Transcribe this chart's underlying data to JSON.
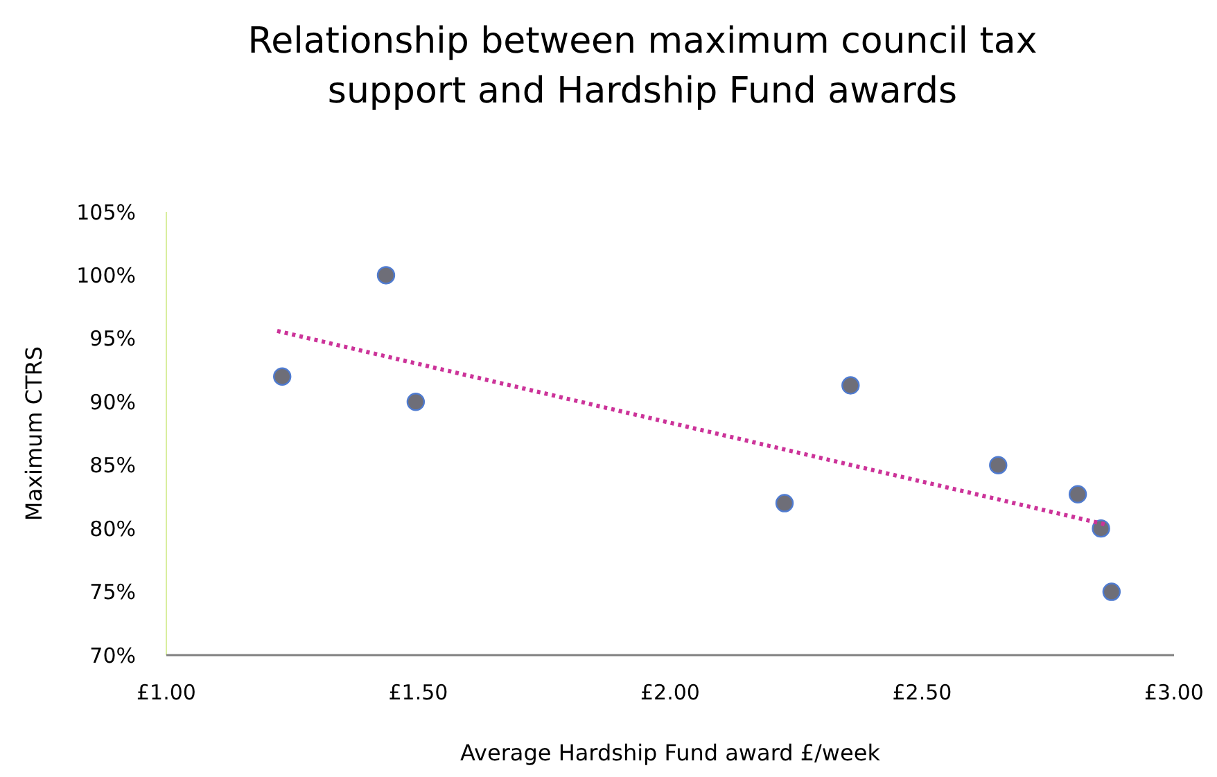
{
  "chart_data": {
    "type": "scatter",
    "title": "Relationship between maximum council tax support and Hardship Fund awards",
    "xlabel": "Average Hardship Fund award £/week",
    "ylabel": "Maximum CTRS",
    "xlim": [
      1,
      3
    ],
    "xticks": [
      {
        "value": 1,
        "label": "£1.00"
      },
      {
        "value": 1.5,
        "label": "£1.50"
      },
      {
        "value": 2,
        "label": "£2.00"
      },
      {
        "value": 2.5,
        "label": "£2.50"
      },
      {
        "value": 3,
        "label": "£3.00"
      }
    ],
    "ylim": [
      70,
      105
    ],
    "yticks": [
      {
        "value": 70,
        "label": "70%"
      },
      {
        "value": 75,
        "label": "75%"
      },
      {
        "value": 80,
        "label": "80%"
      },
      {
        "value": 85,
        "label": "85%"
      },
      {
        "value": 90,
        "label": "90%"
      },
      {
        "value": 95,
        "label": "95%"
      },
      {
        "value": 100,
        "label": "100%"
      },
      {
        "value": 105,
        "label": "105%"
      }
    ],
    "grid": false,
    "series": [
      {
        "color": "#6e6e78",
        "marker": "circle",
        "x": [
          1.23,
          1.436,
          1.495,
          2.227,
          2.358,
          2.651,
          2.809,
          2.855,
          2.876
        ],
        "values": [
          92,
          100,
          90,
          82,
          91.3,
          85,
          82.7,
          80,
          75
        ]
      },
      {
        "type": "line",
        "color": "#cc3399",
        "line_style": "dotted",
        "marker": "none",
        "x": [
          1.22,
          2.866
        ],
        "values": [
          95.6,
          80.3
        ]
      }
    ]
  }
}
